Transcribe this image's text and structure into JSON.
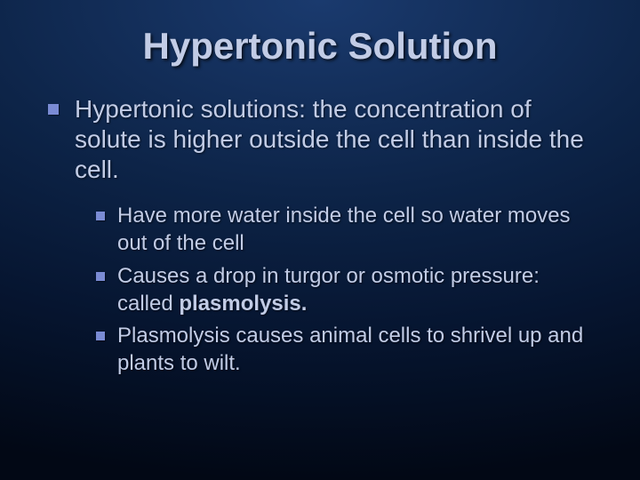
{
  "slide": {
    "title": "Hypertonic Solution",
    "bullet_color": "#7a8bd4",
    "text_color": "#c2cce6",
    "background_gradient": {
      "type": "radial",
      "stops": [
        "#1a3a6e",
        "#0d2448",
        "#061530",
        "#020815"
      ]
    },
    "title_fontsize": 42,
    "level1_fontsize": 28,
    "level2_fontsize": 24,
    "level1": {
      "text": "Hypertonic solutions: the concentration of solute is higher outside the cell than inside the cell."
    },
    "level2": [
      {
        "text": "Have more water inside the cell so water moves out of the cell"
      },
      {
        "text_prefix": "Causes a drop in turgor or osmotic pressure: called ",
        "text_bold": "plasmolysis."
      },
      {
        "text": "Plasmolysis causes animal cells to shrivel up and plants to wilt."
      }
    ]
  }
}
